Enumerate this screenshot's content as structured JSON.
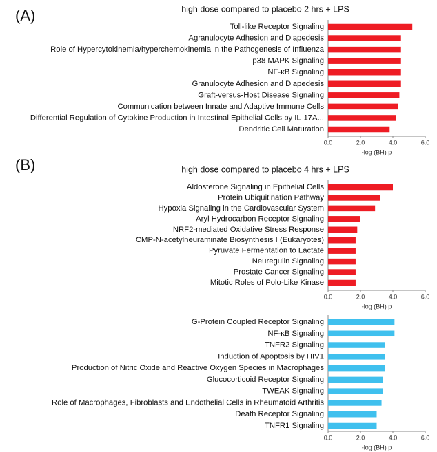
{
  "chart_data": [
    {
      "type": "bar",
      "orientation": "horizontal",
      "panel_label": "(A)",
      "title": "high dose compared to placebo 2 hrs + LPS",
      "x_label": "-log (BH) p",
      "categories": [
        "Toll-like Receptor Signaling",
        "Agranulocyte Adhesion and Diapedesis",
        "Role of Hypercytokinemia/hyperchemokinemia in the Pathogenesis of Influenza",
        "p38 MAPK Signaling",
        "NF-κB Signaling",
        "Granulocyte Adhesion and Diapedesis",
        "Graft-versus-Host Disease Signaling",
        "Communication between Innate and Adaptive Immune Cells",
        "Differential Regulation of Cytokine Production in Intestinal Epithelial Cells by IL-17A...",
        "Dendritic Cell Maturation"
      ],
      "values": [
        5.2,
        4.5,
        4.5,
        4.5,
        4.5,
        4.5,
        4.4,
        4.3,
        4.2,
        3.8
      ],
      "color": "#ee1c24",
      "xlim": [
        0,
        6
      ],
      "xticks": [
        {
          "value": 0,
          "label": "0.0"
        },
        {
          "value": 2,
          "label": "2.0"
        },
        {
          "value": 4,
          "label": "4.0"
        },
        {
          "value": 6,
          "label": "6.0"
        }
      ]
    },
    {
      "type": "bar",
      "orientation": "horizontal",
      "panel_label": "(B)",
      "title": "high dose compared to placebo 4 hrs + LPS",
      "x_label": "-log (BH) p",
      "categories": [
        "Aldosterone Signaling in Epithelial Cells",
        "Protein Ubiquitination Pathway",
        "Hypoxia Signaling in the Cardiovascular System",
        "Aryl Hydrocarbon Receptor Signaling",
        "NRF2-mediated Oxidative Stress Response",
        "CMP-N-acetylneuraminate Biosynthesis I (Eukaryotes)",
        "Pyruvate Fermentation to Lactate",
        "Neuregulin Signaling",
        "Prostate Cancer Signaling",
        "Mitotic Roles of Polo-Like Kinase"
      ],
      "values": [
        4.0,
        3.2,
        2.9,
        2.0,
        1.8,
        1.7,
        1.7,
        1.7,
        1.7,
        1.7
      ],
      "color": "#ee1c24",
      "xlim": [
        0,
        6
      ],
      "xticks": [
        {
          "value": 0,
          "label": "0.0"
        },
        {
          "value": 2,
          "label": "2.0"
        },
        {
          "value": 4,
          "label": "4.0"
        },
        {
          "value": 6,
          "label": "6.0"
        }
      ]
    },
    {
      "type": "bar",
      "orientation": "horizontal",
      "x_label": "-log (BH) p",
      "categories": [
        "G-Protein Coupled Receptor Signaling",
        "NF-κB Signaling",
        "TNFR2 Signaling",
        "Induction of Apoptosis by HIV1",
        "Production of Nitric Oxide and Reactive Oxygen Species in Macrophages",
        "Glucocorticoid Receptor Signaling",
        "TWEAK Signaling",
        "Role of Macrophages, Fibroblasts and Endothelial Cells in Rheumatoid Arthritis",
        "Death Receptor Signaling",
        "TNFR1 Signaling"
      ],
      "values": [
        4.1,
        4.1,
        3.5,
        3.5,
        3.5,
        3.4,
        3.4,
        3.3,
        3.0,
        3.0
      ],
      "color": "#3fc0ee",
      "xlim": [
        0,
        6
      ],
      "xticks": [
        {
          "value": 0,
          "label": "0.0"
        },
        {
          "value": 2,
          "label": "2.0"
        },
        {
          "value": 4,
          "label": "4.0"
        },
        {
          "value": 6,
          "label": "6.0"
        }
      ]
    }
  ]
}
